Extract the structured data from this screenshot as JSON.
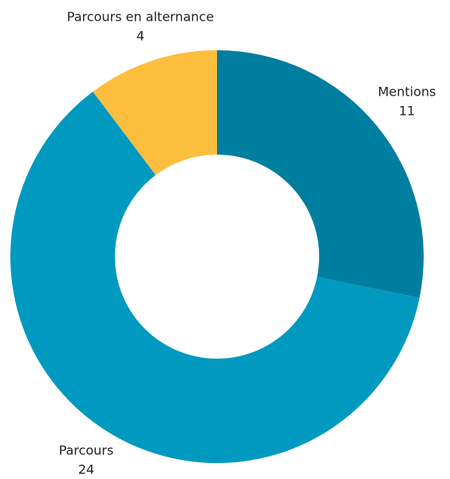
{
  "chart_data": {
    "type": "donut",
    "categories": [
      "Mentions",
      "Parcours",
      "Parcours en alternance"
    ],
    "values": [
      11,
      24,
      4
    ],
    "colors": [
      "#007ea0",
      "#0099c0",
      "#fdbe3e"
    ]
  }
}
